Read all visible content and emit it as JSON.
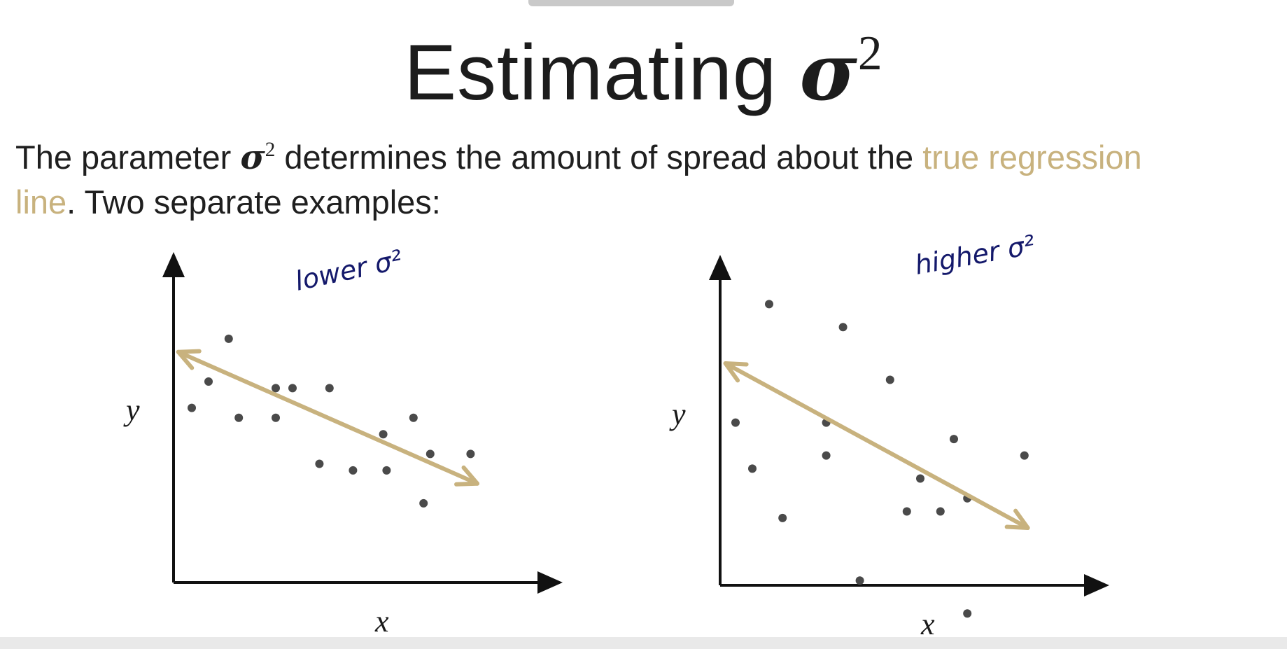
{
  "title": {
    "prefix": "Estimating",
    "symbol": "σ",
    "exponent": "2"
  },
  "intro": {
    "part1": "The parameter ",
    "symbol": "σ",
    "exponent": "2",
    "part2": " determines the amount of spread about the ",
    "highlight1": "true regression",
    "highlight2": "line",
    "part3": ". Two separate examples:"
  },
  "colors": {
    "regression_line": "#c8b27e",
    "points": "#4a4a4a",
    "annotation": "#14196b",
    "axis": "#111111"
  },
  "plots": [
    {
      "annotation": "lower σ²",
      "xlabel": "x",
      "ylabel": "y",
      "points": [
        [
          1,
          0
        ],
        [
          0.5,
          -0.8
        ],
        [
          1.6,
          1.3
        ],
        [
          1.9,
          -1.1
        ],
        [
          3,
          -0.2
        ],
        [
          3,
          -1.1
        ],
        [
          3.5,
          -0.2
        ],
        [
          4.6,
          -0.2
        ],
        [
          4.3,
          -2.5
        ],
        [
          5.3,
          -2.7
        ],
        [
          6.2,
          -1.6
        ],
        [
          6.3,
          -2.7
        ],
        [
          7.1,
          -1.1
        ],
        [
          7.6,
          -2.2
        ],
        [
          7.4,
          -3.7
        ],
        [
          8.8,
          -2.2
        ]
      ],
      "line": {
        "from": [
          0.1,
          0.9
        ],
        "to": [
          9.0,
          -3.1
        ]
      }
    },
    {
      "annotation": "higher σ²",
      "xlabel": "x",
      "ylabel": "y",
      "points": [
        [
          0.5,
          -0.8
        ],
        [
          1,
          -2.2
        ],
        [
          1.5,
          2.8
        ],
        [
          1.9,
          -3.7
        ],
        [
          3.2,
          -0.8
        ],
        [
          3.2,
          -1.8
        ],
        [
          3.7,
          2.1
        ],
        [
          4.2,
          -5.6
        ],
        [
          5.1,
          0.5
        ],
        [
          5.6,
          -3.5
        ],
        [
          6,
          -2.5
        ],
        [
          6.6,
          -3.5
        ],
        [
          7,
          -1.3
        ],
        [
          7.4,
          -3.1
        ],
        [
          7.4,
          -6.6
        ],
        [
          9.1,
          -1.8
        ]
      ],
      "line": {
        "from": [
          0.2,
          1.0
        ],
        "to": [
          9.2,
          -4.0
        ]
      }
    }
  ]
}
